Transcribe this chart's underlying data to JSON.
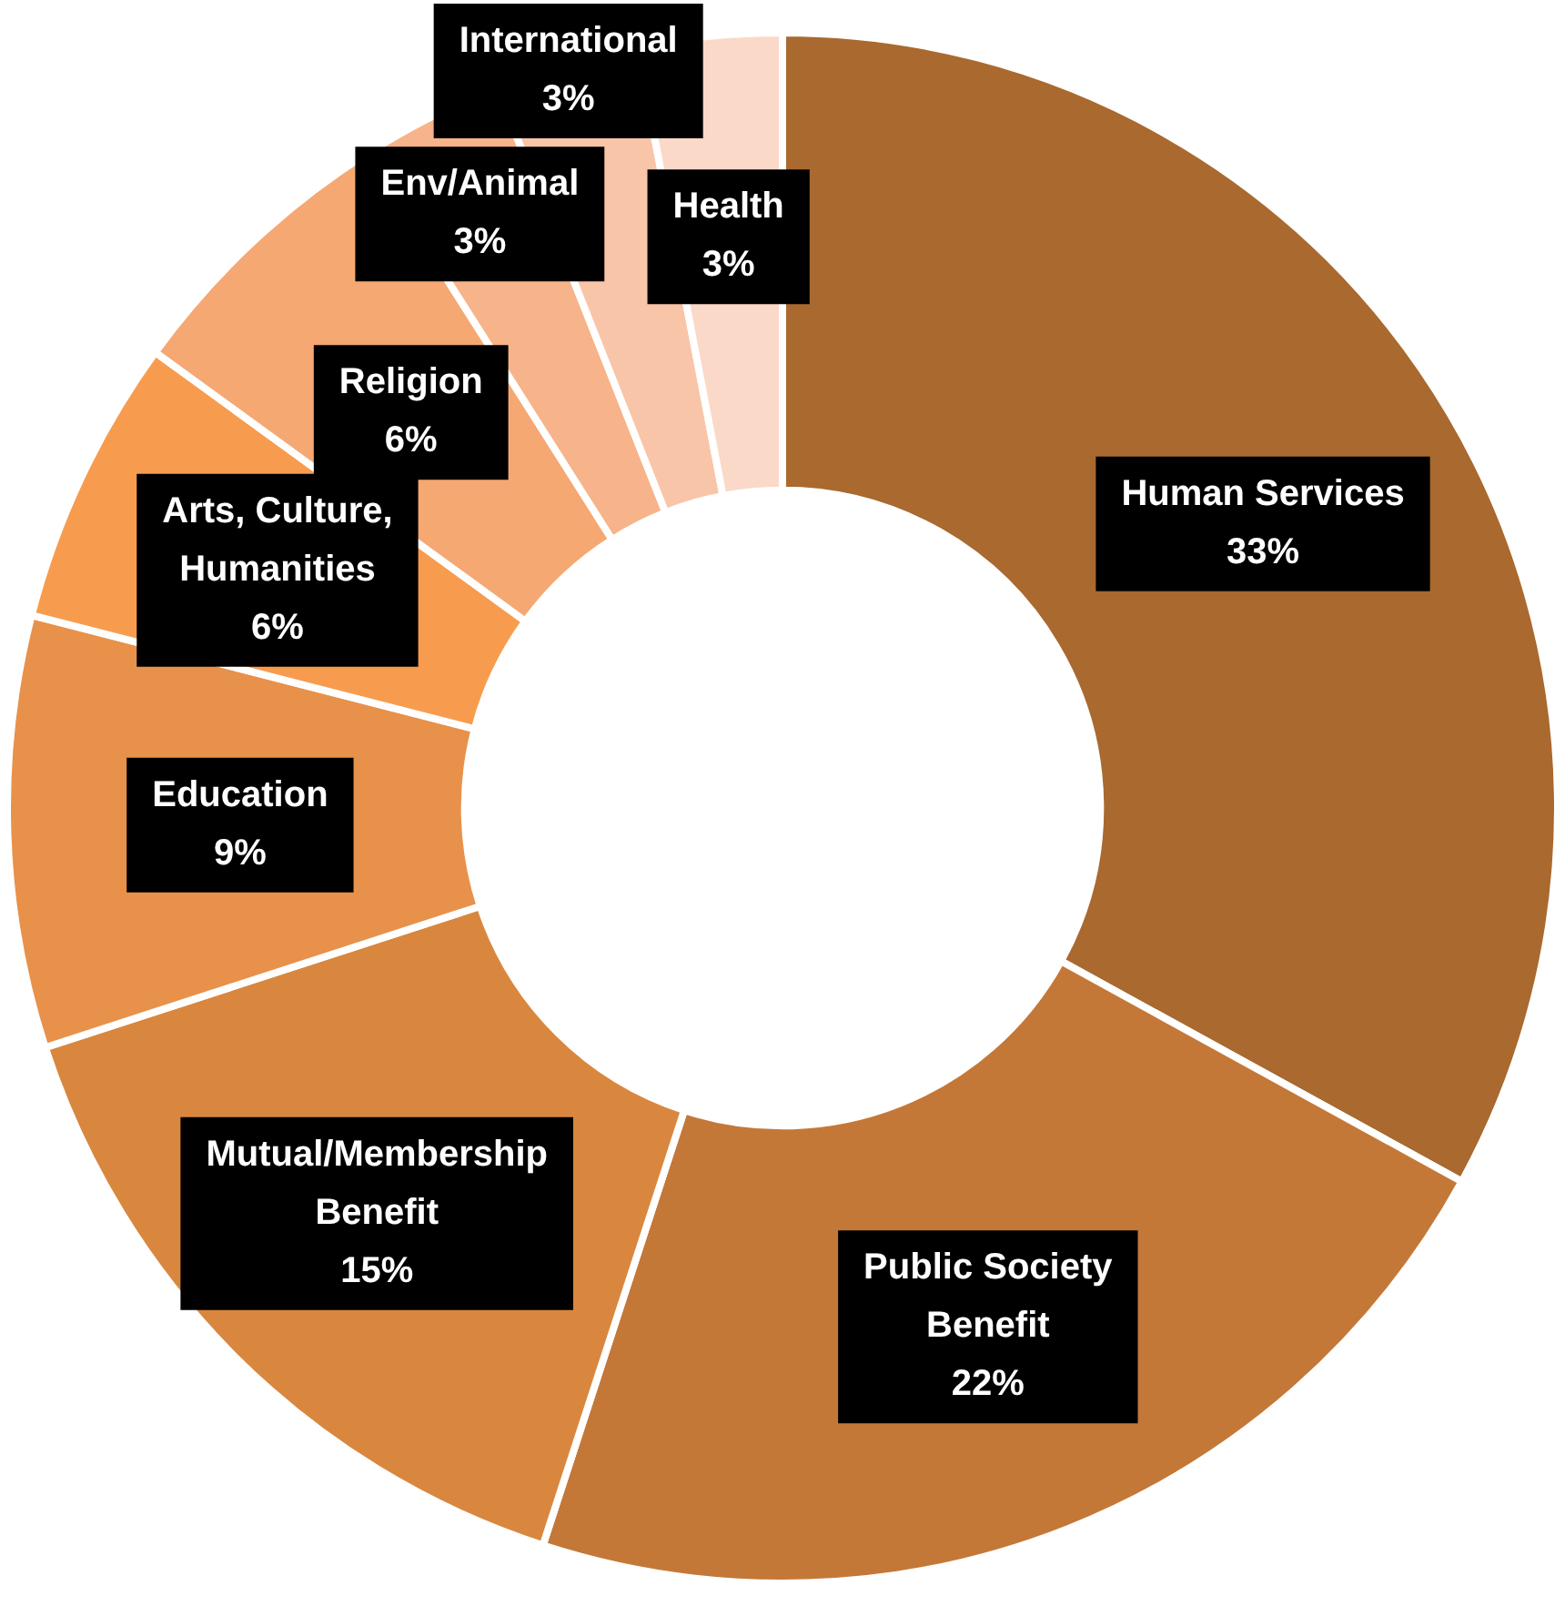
{
  "chart_data": {
    "type": "donut",
    "categories": [
      "Human Services",
      "Public Society Benefit",
      "Mutual/Membership Benefit",
      "Education",
      "Arts, Culture, Humanities",
      "Religion",
      "Env/Animal",
      "International",
      "Health"
    ],
    "values": [
      33,
      22,
      15,
      9,
      6,
      6,
      3,
      3,
      3
    ],
    "colors": [
      "#a9692f",
      "#c47838",
      "#d9873f",
      "#e8914a",
      "#f79c4f",
      "#f5a872",
      "#f7b389",
      "#f9c5a8",
      "#fad9c8"
    ],
    "value_labels": [
      "33%",
      "22%",
      "15%",
      "9%",
      "6%",
      "6%",
      "3%",
      "3%",
      "3%"
    ],
    "legend": false
  }
}
